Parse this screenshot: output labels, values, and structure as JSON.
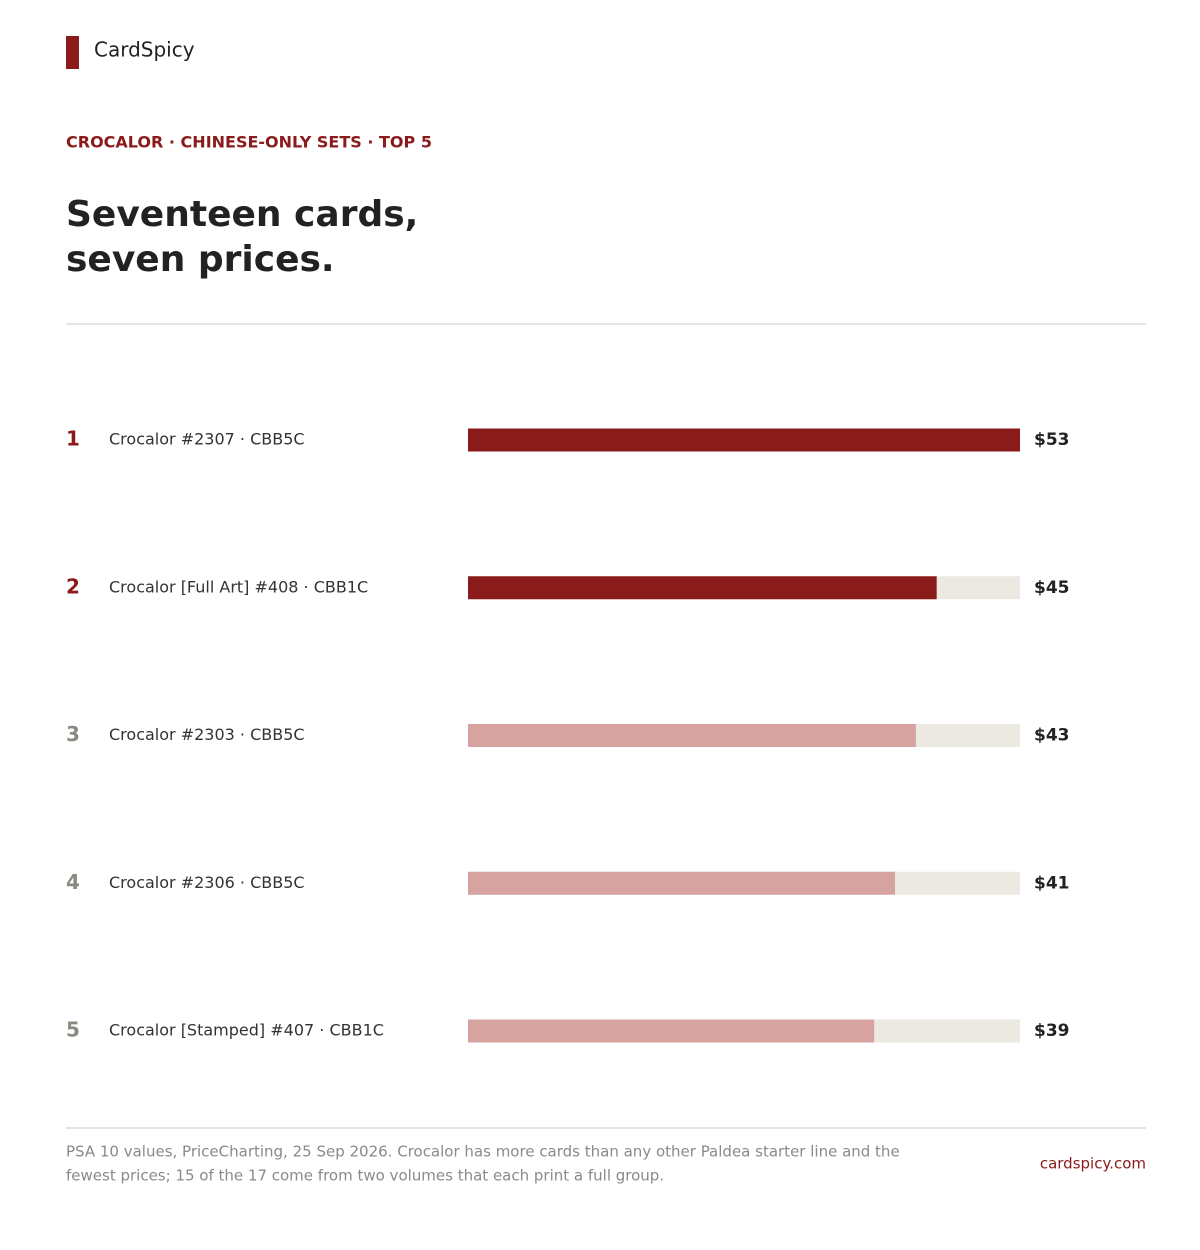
{
  "brand": "CardSpicy",
  "chart_data": {
    "type": "bar",
    "orientation": "horizontal",
    "kicker": "CROCALOR · CHINESE-ONLY SETS · TOP 5",
    "title_lines": [
      "Seventeen cards,",
      "seven prices."
    ],
    "ranks": [
      1,
      2,
      3,
      4,
      5
    ],
    "categories": [
      "Crocalor #2307 · CBB5C",
      "Crocalor [Full Art] #408 · CBB1C",
      "Crocalor #2303 · CBB5C",
      "Crocalor #2306 · CBB5C",
      "Crocalor [Stamped] #407 · CBB1C"
    ],
    "values": [
      53,
      45,
      43,
      41,
      39
    ],
    "value_labels": [
      "$53",
      "$45",
      "$43",
      "$41",
      "$39"
    ],
    "colors": [
      "#8b1a1a",
      "#8b1a1a",
      "#d6a3a0",
      "#d6a3a0",
      "#d6a3a0"
    ],
    "track_color": "#ece9e2"
  },
  "footer": {
    "note_lines": [
      "PSA 10 values, PriceCharting, 25 Sep 2026. Crocalor has more cards than any other Paldea starter line and the",
      "fewest prices; 15 of the 17 come from two volumes that each print a full group."
    ],
    "site": "cardspicy.com"
  }
}
